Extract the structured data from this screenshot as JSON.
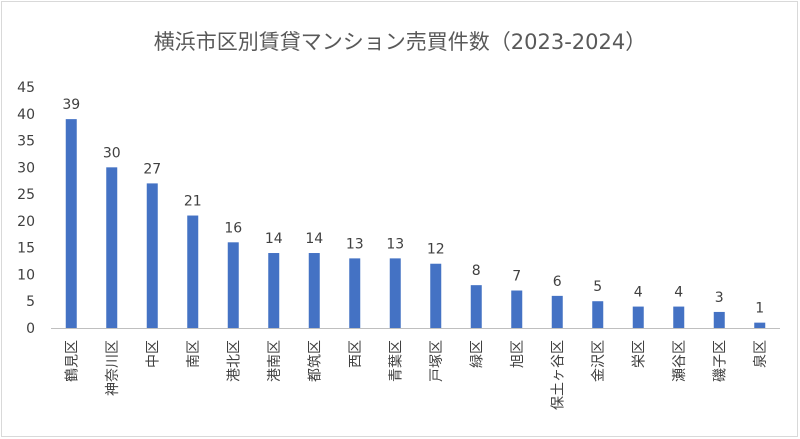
{
  "chart_data": {
    "type": "bar",
    "title": "横浜市区別賃貸マンション売買件数（2023-2024）",
    "xlabel": "",
    "ylabel": "",
    "categories": [
      "鶴見区",
      "神奈川区",
      "中区",
      "南区",
      "港北区",
      "港南区",
      "都筑区",
      "西区",
      "青葉区",
      "戸塚区",
      "緑区",
      "旭区",
      "保土ヶ谷区",
      "金沢区",
      "栄区",
      "瀬谷区",
      "磯子区",
      "泉区"
    ],
    "values": [
      39,
      30,
      27,
      21,
      16,
      14,
      14,
      13,
      13,
      12,
      8,
      7,
      6,
      5,
      4,
      4,
      3,
      1
    ],
    "ylim": [
      0,
      45
    ],
    "yticks": [
      0,
      5,
      10,
      15,
      20,
      25,
      30,
      35,
      40,
      45
    ],
    "grid": false,
    "legend": "none",
    "bar_color": "#4472c4"
  }
}
